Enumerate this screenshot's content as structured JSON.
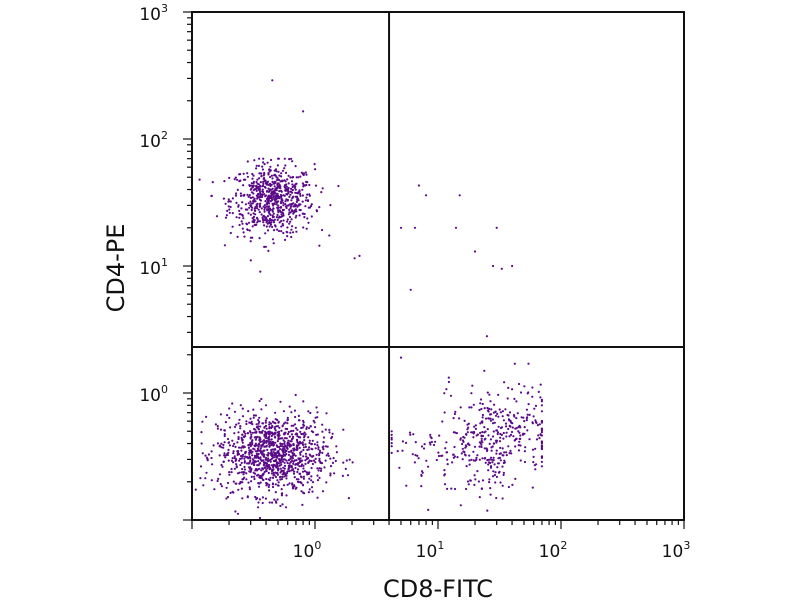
{
  "chart_data": {
    "type": "scatter",
    "title": "",
    "xlabel": "CD8-FITC",
    "ylabel": "CD4-PE",
    "x_scale": "log",
    "y_scale": "log",
    "xlim": [
      0.1,
      1000
    ],
    "ylim": [
      0.1,
      1000
    ],
    "x_ticks": [
      {
        "base": "10",
        "exp": "0"
      },
      {
        "base": "10",
        "exp": "1"
      },
      {
        "base": "10",
        "exp": "2"
      },
      {
        "base": "10",
        "exp": "3"
      }
    ],
    "y_ticks": [
      {
        "base": "10",
        "exp": "0"
      },
      {
        "base": "10",
        "exp": "1"
      },
      {
        "base": "10",
        "exp": "2"
      },
      {
        "base": "10",
        "exp": "3"
      }
    ],
    "quadrant_gate": {
      "x": 4,
      "y": 2.3
    },
    "point_color": "#5a0a87",
    "grid": false,
    "populations": [
      {
        "quadrant": "upper-left",
        "center": [
          0.45,
          33
        ],
        "points": 700
      },
      {
        "quadrant": "lower-left",
        "center": [
          0.45,
          0.33
        ],
        "points": 1100
      },
      {
        "quadrant": "lower-right",
        "center": [
          35,
          0.5
        ],
        "points": 450
      }
    ],
    "outliers": [
      [
        0.45,
        290
      ],
      [
        0.8,
        165
      ],
      [
        2.1,
        11.5
      ],
      [
        2.3,
        12
      ],
      [
        7,
        43
      ],
      [
        8,
        36
      ],
      [
        5,
        20
      ],
      [
        6.5,
        20
      ],
      [
        15,
        36
      ],
      [
        14,
        20
      ],
      [
        30,
        20
      ],
      [
        20,
        13
      ],
      [
        28,
        10
      ],
      [
        40,
        10
      ],
      [
        33,
        9.5
      ],
      [
        6,
        6.5
      ],
      [
        25,
        2.8
      ],
      [
        5,
        1.9
      ]
    ]
  }
}
